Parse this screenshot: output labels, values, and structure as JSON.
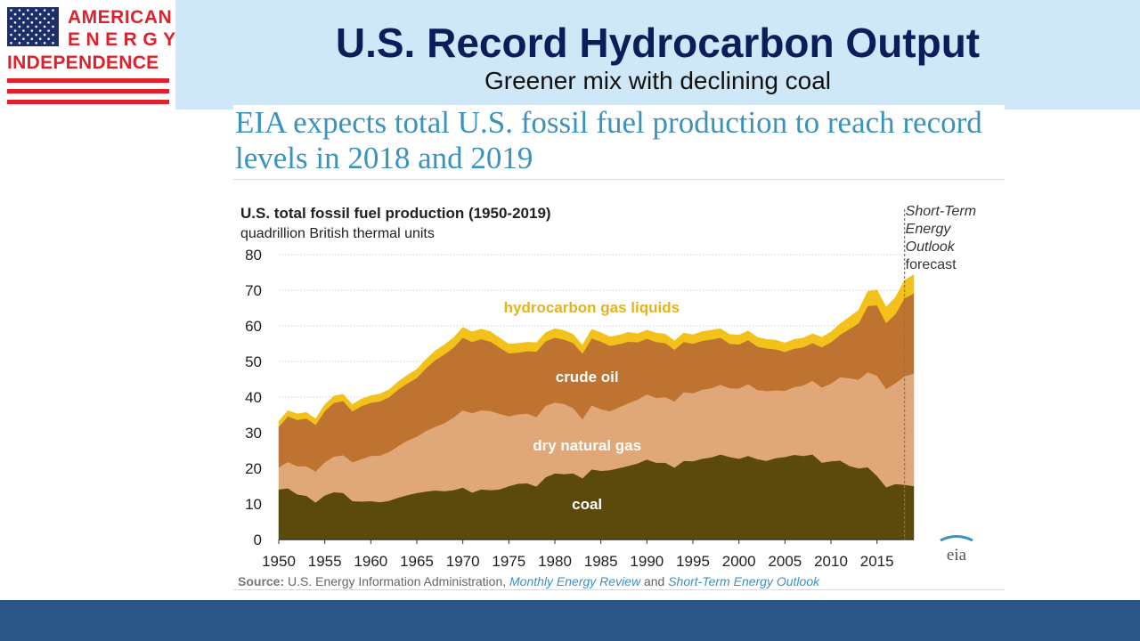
{
  "logo": {
    "line1": "AMERICAN",
    "line2": "ENERGY",
    "line3": "INDEPENDENCE",
    "colors": {
      "red": "#e0202a",
      "blue": "#1c2f6b"
    }
  },
  "slide": {
    "title": "U.S. Record Hydrocarbon Output",
    "subtitle": "Greener mix with declining coal",
    "headline": "EIA expects total U.S. fossil fuel production to reach record levels in 2018 and 2019"
  },
  "source": {
    "label": "Source:",
    "text1": "U.S. Energy Information Administration,",
    "pub1": "Monthly Energy Review",
    "and": "and",
    "pub2": "Short-Term Energy Outlook"
  },
  "eia_logo": "eia",
  "chart_data": {
    "type": "area",
    "stacked": true,
    "title": "U.S. total fossil fuel production (1950-2019)",
    "ylabel": "quadrillion British thermal units",
    "xlim": [
      1950,
      2019
    ],
    "ylim": [
      0,
      80
    ],
    "yticks": [
      0,
      10,
      20,
      30,
      40,
      50,
      60,
      70,
      80
    ],
    "xticks": [
      1950,
      1955,
      1960,
      1965,
      1970,
      1975,
      1980,
      1985,
      1990,
      1995,
      2000,
      2005,
      2010,
      2015
    ],
    "grid": true,
    "forecast": {
      "start": 2018,
      "label_lines": [
        "Short-Term",
        "Energy",
        "Outlook"
      ],
      "label_suffix": "forecast"
    },
    "years": [
      1950,
      1951,
      1952,
      1953,
      1954,
      1955,
      1956,
      1957,
      1958,
      1959,
      1960,
      1961,
      1962,
      1963,
      1964,
      1965,
      1966,
      1967,
      1968,
      1969,
      1970,
      1971,
      1972,
      1973,
      1974,
      1975,
      1976,
      1977,
      1978,
      1979,
      1980,
      1981,
      1982,
      1983,
      1984,
      1985,
      1986,
      1987,
      1988,
      1989,
      1990,
      1991,
      1992,
      1993,
      1994,
      1995,
      1996,
      1997,
      1998,
      1999,
      2000,
      2001,
      2002,
      2003,
      2004,
      2005,
      2006,
      2007,
      2008,
      2009,
      2010,
      2011,
      2012,
      2013,
      2014,
      2015,
      2016,
      2017,
      2018,
      2019
    ],
    "series": [
      {
        "name": "coal",
        "color": "#5c4a0c",
        "label_color": "#ffffff",
        "values": [
          14.1,
          14.4,
          12.7,
          12.3,
          10.4,
          12.4,
          13.3,
          13.1,
          10.8,
          10.7,
          10.8,
          10.5,
          10.9,
          11.8,
          12.5,
          13.1,
          13.5,
          13.8,
          13.6,
          13.9,
          14.6,
          13.2,
          14.1,
          13.9,
          14.1,
          15.0,
          15.7,
          15.8,
          14.9,
          17.5,
          18.6,
          18.4,
          18.6,
          17.2,
          19.7,
          19.3,
          19.5,
          20.1,
          20.7,
          21.4,
          22.5,
          21.6,
          21.6,
          20.2,
          22.1,
          22.0,
          22.7,
          23.1,
          23.9,
          23.2,
          22.7,
          23.5,
          22.6,
          22.1,
          22.9,
          23.2,
          23.8,
          23.5,
          23.9,
          21.6,
          22.0,
          22.2,
          20.7,
          20.0,
          20.3,
          17.9,
          14.7,
          15.6,
          15.4,
          15.0
        ]
      },
      {
        "name": "dry natural gas",
        "color": "#e0a878",
        "label_color": "#ffffff",
        "values": [
          6.2,
          7.4,
          7.9,
          8.3,
          8.7,
          9.3,
          10.0,
          10.6,
          10.9,
          11.9,
          12.7,
          13.1,
          13.7,
          14.5,
          15.3,
          15.8,
          17.0,
          17.9,
          19.1,
          20.4,
          21.7,
          22.3,
          22.2,
          22.2,
          21.2,
          19.6,
          19.5,
          19.6,
          19.5,
          20.1,
          19.9,
          19.7,
          18.3,
          16.6,
          18.0,
          17.3,
          16.5,
          17.1,
          17.6,
          17.9,
          18.3,
          18.2,
          18.4,
          18.6,
          19.3,
          19.1,
          19.4,
          19.4,
          19.6,
          19.3,
          19.7,
          20.2,
          19.4,
          19.6,
          19.0,
          18.6,
          19.0,
          19.8,
          20.7,
          21.1,
          21.8,
          23.4,
          24.6,
          24.9,
          26.7,
          28.1,
          27.6,
          28.3,
          30.5,
          31.6
        ]
      },
      {
        "name": "crude oil",
        "color": "#bf7330",
        "label_color": "#ffffff",
        "values": [
          11.4,
          12.8,
          13.0,
          13.4,
          13.1,
          14.4,
          15.1,
          15.2,
          14.3,
          14.9,
          14.9,
          15.2,
          15.4,
          15.9,
          16.1,
          16.5,
          17.6,
          18.7,
          19.3,
          19.6,
          20.4,
          20.0,
          20.0,
          19.5,
          18.6,
          17.7,
          17.3,
          17.5,
          18.4,
          18.1,
          18.2,
          18.1,
          18.3,
          18.4,
          18.8,
          19.0,
          18.4,
          17.7,
          17.3,
          16.1,
          15.6,
          15.7,
          15.2,
          14.5,
          14.1,
          13.9,
          13.7,
          13.7,
          13.2,
          12.5,
          12.4,
          12.3,
          12.2,
          12.0,
          11.5,
          10.9,
          10.8,
          10.7,
          10.6,
          11.3,
          11.6,
          11.9,
          13.8,
          15.8,
          18.6,
          19.8,
          18.5,
          19.4,
          21.9,
          22.5
        ]
      },
      {
        "name": "hydrocarbon gas liquids",
        "color": "#f2c21b",
        "label_color": "#e6b31a",
        "values": [
          1.5,
          1.6,
          1.7,
          1.7,
          1.7,
          1.8,
          1.9,
          1.9,
          1.9,
          2.0,
          2.0,
          2.1,
          2.1,
          2.2,
          2.3,
          2.4,
          2.5,
          2.6,
          2.7,
          2.8,
          2.9,
          2.8,
          2.8,
          2.8,
          2.7,
          2.6,
          2.6,
          2.5,
          2.5,
          2.4,
          2.5,
          2.5,
          2.4,
          2.4,
          2.5,
          2.5,
          2.5,
          2.5,
          2.6,
          2.4,
          2.4,
          2.5,
          2.5,
          2.5,
          2.5,
          2.5,
          2.6,
          2.6,
          2.5,
          2.6,
          2.6,
          2.6,
          2.6,
          2.5,
          2.6,
          2.5,
          2.6,
          2.6,
          2.6,
          2.8,
          2.9,
          3.1,
          3.4,
          3.7,
          4.1,
          4.3,
          4.5,
          4.7,
          5.0,
          5.3
        ]
      }
    ],
    "area_labels": [
      {
        "series": "hydrocarbon gas liquids",
        "text": "hydrocarbon gas liquids",
        "x": 1984,
        "y": 63.8
      },
      {
        "series": "crude oil",
        "text": "crude oil",
        "x": 1983.5,
        "y": 44.2
      },
      {
        "series": "dry natural gas",
        "text": "dry natural gas",
        "x": 1983.5,
        "y": 25.0
      },
      {
        "series": "coal",
        "text": "coal",
        "x": 1983.5,
        "y": 8.5
      }
    ]
  }
}
